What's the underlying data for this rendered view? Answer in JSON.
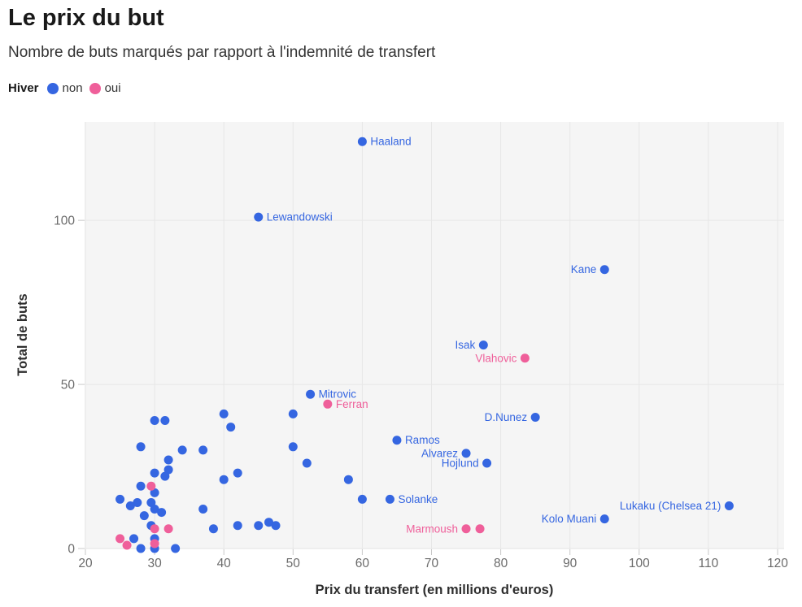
{
  "header": {
    "title": "Le prix du but",
    "subtitle": "Nombre de buts marqués par rapport à l'indemnité de transfert"
  },
  "legend": {
    "label": "Hiver",
    "items": [
      {
        "label": "non",
        "color": "#3566e1"
      },
      {
        "label": "oui",
        "color": "#ef5f9a"
      }
    ]
  },
  "colors": {
    "plot_background": "#f5f5f5",
    "gridline": "#e7e7e7",
    "tick": "#c9c9c9",
    "tick_text": "#6b6b6b",
    "title_text": "#191919",
    "subtitle_text": "#333333"
  },
  "chart_data": {
    "type": "scatter",
    "title": "Le prix du but",
    "subtitle": "Nombre de buts marqués par rapport à l'indemnité de transfert",
    "xlabel": "Prix du transfert (en millions d'euros)",
    "ylabel": "Total de buts",
    "xlim": [
      20,
      120
    ],
    "ylim": [
      0,
      130
    ],
    "x_ticks": [
      20,
      30,
      40,
      50,
      60,
      70,
      80,
      90,
      100,
      110,
      120
    ],
    "y_ticks": [
      0,
      50,
      100
    ],
    "grid": true,
    "legend_position": "top-left",
    "series": [
      {
        "name": "non",
        "color": "#3566e1",
        "points": [
          {
            "x": 60,
            "y": 124,
            "label": "Haaland",
            "label_side": "right"
          },
          {
            "x": 45,
            "y": 101,
            "label": "Lewandowski",
            "label_side": "right"
          },
          {
            "x": 95,
            "y": 85,
            "label": "Kane",
            "label_side": "left"
          },
          {
            "x": 77.5,
            "y": 62,
            "label": "Isak",
            "label_side": "left"
          },
          {
            "x": 52.5,
            "y": 47,
            "label": "Mitrovic",
            "label_side": "right"
          },
          {
            "x": 85,
            "y": 40,
            "label": "D.Nunez",
            "label_side": "left"
          },
          {
            "x": 65,
            "y": 33,
            "label": "Ramos",
            "label_side": "right"
          },
          {
            "x": 75,
            "y": 29,
            "label": "Alvarez",
            "label_side": "left"
          },
          {
            "x": 78,
            "y": 26,
            "label": "Hojlund",
            "label_side": "left"
          },
          {
            "x": 64,
            "y": 15,
            "label": "Solanke",
            "label_side": "right"
          },
          {
            "x": 95,
            "y": 9,
            "label": "Kolo Muani",
            "label_side": "left"
          },
          {
            "x": 113,
            "y": 13,
            "label": "Lukaku (Chelsea 21)",
            "label_side": "left"
          },
          {
            "x": 50,
            "y": 41
          },
          {
            "x": 30,
            "y": 39
          },
          {
            "x": 31.5,
            "y": 39
          },
          {
            "x": 40,
            "y": 41
          },
          {
            "x": 41,
            "y": 37
          },
          {
            "x": 28,
            "y": 31
          },
          {
            "x": 34,
            "y": 30
          },
          {
            "x": 37,
            "y": 30
          },
          {
            "x": 50,
            "y": 31
          },
          {
            "x": 52,
            "y": 26
          },
          {
            "x": 32,
            "y": 27
          },
          {
            "x": 32,
            "y": 24
          },
          {
            "x": 30,
            "y": 23
          },
          {
            "x": 31.5,
            "y": 22
          },
          {
            "x": 40,
            "y": 21
          },
          {
            "x": 42,
            "y": 23
          },
          {
            "x": 58,
            "y": 21
          },
          {
            "x": 28,
            "y": 19
          },
          {
            "x": 30,
            "y": 17
          },
          {
            "x": 25,
            "y": 15
          },
          {
            "x": 27.5,
            "y": 14
          },
          {
            "x": 26.5,
            "y": 13
          },
          {
            "x": 29.5,
            "y": 14
          },
          {
            "x": 30,
            "y": 12
          },
          {
            "x": 31,
            "y": 11
          },
          {
            "x": 28.5,
            "y": 10
          },
          {
            "x": 37,
            "y": 12
          },
          {
            "x": 60,
            "y": 15
          },
          {
            "x": 38.5,
            "y": 6
          },
          {
            "x": 42,
            "y": 7
          },
          {
            "x": 45,
            "y": 7
          },
          {
            "x": 46.5,
            "y": 8
          },
          {
            "x": 47.5,
            "y": 7
          },
          {
            "x": 29.5,
            "y": 7
          },
          {
            "x": 30,
            "y": 3
          },
          {
            "x": 27,
            "y": 3
          },
          {
            "x": 28,
            "y": 0
          },
          {
            "x": 30,
            "y": 0
          },
          {
            "x": 33,
            "y": 0
          }
        ]
      },
      {
        "name": "oui",
        "color": "#ef5f9a",
        "points": [
          {
            "x": 83.5,
            "y": 58,
            "label": "Vlahovic",
            "label_side": "left"
          },
          {
            "x": 55,
            "y": 44,
            "label": "Ferran",
            "label_side": "right"
          },
          {
            "x": 75,
            "y": 6,
            "label": "Marmoush",
            "label_side": "left"
          },
          {
            "x": 29.5,
            "y": 19
          },
          {
            "x": 25,
            "y": 3
          },
          {
            "x": 26,
            "y": 1
          },
          {
            "x": 30,
            "y": 6
          },
          {
            "x": 30,
            "y": 1.5
          },
          {
            "x": 32,
            "y": 6
          },
          {
            "x": 77,
            "y": 6
          }
        ]
      }
    ]
  }
}
